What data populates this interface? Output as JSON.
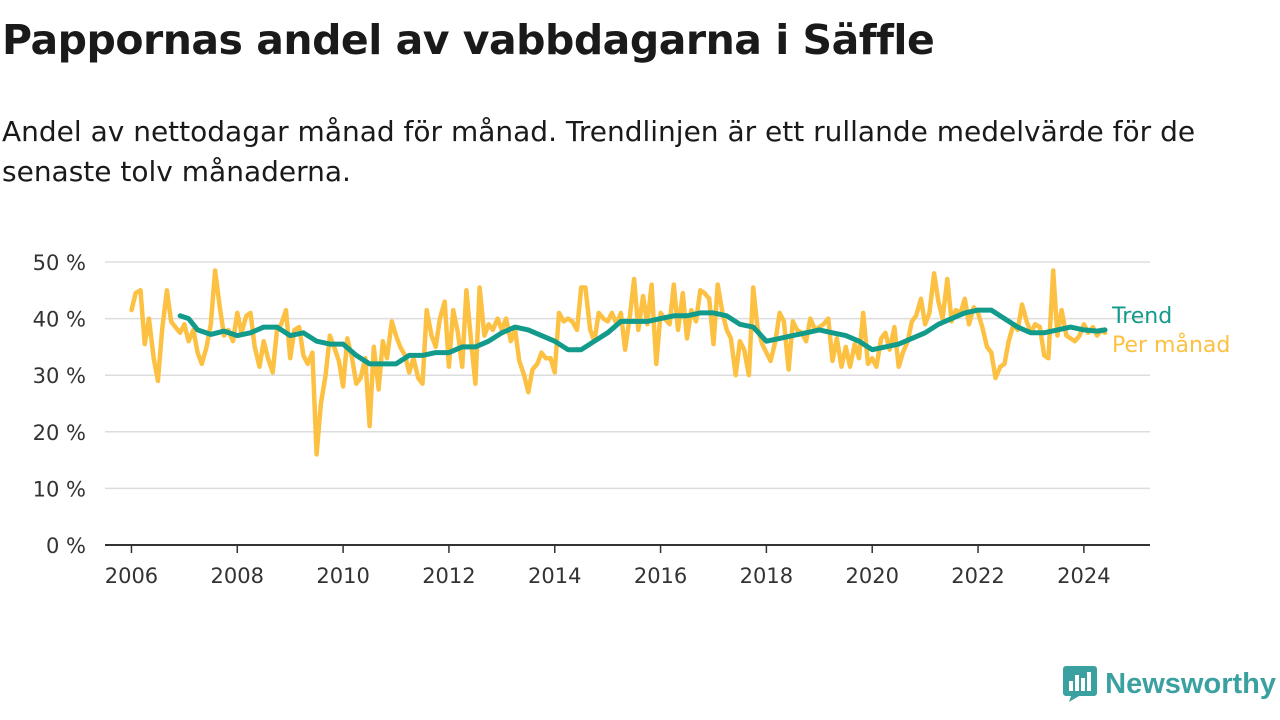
{
  "title": "Pappornas andel av vabbdagarna i Säffle",
  "subtitle": "Andel av nettodagar månad för månad. Trendlinjen är ett rullande medelvärde för de senaste tolv månaderna.",
  "brand": {
    "name": "Newsworthy",
    "icon": "newsworthy-logo-icon",
    "color": "#3aa0a0"
  },
  "chart_data": {
    "type": "line",
    "title": "",
    "xlabel": "",
    "ylabel": "",
    "xlim": [
      2005.5,
      2025.25
    ],
    "ylim": [
      0,
      50
    ],
    "x_ticks": [
      2006,
      2008,
      2010,
      2012,
      2014,
      2016,
      2018,
      2020,
      2022,
      2024
    ],
    "x_tick_labels": [
      "2006",
      "2008",
      "2010",
      "2012",
      "2014",
      "2016",
      "2018",
      "2020",
      "2022",
      "2024"
    ],
    "y_ticks": [
      0,
      10,
      20,
      30,
      40,
      50
    ],
    "y_tick_labels": [
      "0 %",
      "10 %",
      "20 %",
      "30 %",
      "40 %",
      "50 %"
    ],
    "grid": true,
    "legend_position": "right, at line ends",
    "series": [
      {
        "name": "Trend",
        "color": "#129a8a",
        "points": [
          [
            2006.92,
            40.5
          ],
          [
            2007.08,
            40
          ],
          [
            2007.25,
            38
          ],
          [
            2007.5,
            37.2
          ],
          [
            2007.75,
            37.8
          ],
          [
            2008.0,
            37
          ],
          [
            2008.25,
            37.5
          ],
          [
            2008.5,
            38.5
          ],
          [
            2008.75,
            38.5
          ],
          [
            2009.0,
            37
          ],
          [
            2009.25,
            37.5
          ],
          [
            2009.5,
            36
          ],
          [
            2009.75,
            35.5
          ],
          [
            2010.0,
            35.5
          ],
          [
            2010.25,
            33.5
          ],
          [
            2010.5,
            32
          ],
          [
            2010.75,
            32
          ],
          [
            2011.0,
            32
          ],
          [
            2011.25,
            33.5
          ],
          [
            2011.5,
            33.5
          ],
          [
            2011.75,
            34
          ],
          [
            2012.0,
            34
          ],
          [
            2012.25,
            35
          ],
          [
            2012.5,
            35
          ],
          [
            2012.75,
            36
          ],
          [
            2013.0,
            37.5
          ],
          [
            2013.25,
            38.5
          ],
          [
            2013.5,
            38
          ],
          [
            2013.75,
            37
          ],
          [
            2014.0,
            36
          ],
          [
            2014.25,
            34.5
          ],
          [
            2014.5,
            34.5
          ],
          [
            2014.75,
            36
          ],
          [
            2015.0,
            37.5
          ],
          [
            2015.25,
            39.5
          ],
          [
            2015.5,
            39.5
          ],
          [
            2015.75,
            39.5
          ],
          [
            2016.0,
            40
          ],
          [
            2016.25,
            40.5
          ],
          [
            2016.5,
            40.5
          ],
          [
            2016.75,
            41
          ],
          [
            2017.0,
            41
          ],
          [
            2017.25,
            40.5
          ],
          [
            2017.5,
            39
          ],
          [
            2017.75,
            38.5
          ],
          [
            2018.0,
            36
          ],
          [
            2018.25,
            36.5
          ],
          [
            2018.5,
            37
          ],
          [
            2018.75,
            37.5
          ],
          [
            2019.0,
            38
          ],
          [
            2019.25,
            37.5
          ],
          [
            2019.5,
            37
          ],
          [
            2019.75,
            36
          ],
          [
            2020.0,
            34.5
          ],
          [
            2020.25,
            35
          ],
          [
            2020.5,
            35.5
          ],
          [
            2020.75,
            36.5
          ],
          [
            2021.0,
            37.5
          ],
          [
            2021.25,
            39
          ],
          [
            2021.5,
            40
          ],
          [
            2021.75,
            41
          ],
          [
            2022.0,
            41.5
          ],
          [
            2022.25,
            41.5
          ],
          [
            2022.5,
            40
          ],
          [
            2022.75,
            38.5
          ],
          [
            2023.0,
            37.5
          ],
          [
            2023.25,
            37.5
          ],
          [
            2023.5,
            38
          ],
          [
            2023.75,
            38.5
          ],
          [
            2024.0,
            38
          ],
          [
            2024.25,
            37.8
          ],
          [
            2024.4,
            38
          ]
        ]
      },
      {
        "name": "Per månad",
        "color": "#fcc143",
        "points": [
          [
            2006.0,
            41.5
          ],
          [
            2006.08,
            44.5
          ],
          [
            2006.17,
            45
          ],
          [
            2006.25,
            35.5
          ],
          [
            2006.33,
            40
          ],
          [
            2006.42,
            33
          ],
          [
            2006.5,
            29
          ],
          [
            2006.58,
            38
          ],
          [
            2006.67,
            45
          ],
          [
            2006.75,
            39.5
          ],
          [
            2006.83,
            38.5
          ],
          [
            2006.92,
            37.5
          ],
          [
            2007.0,
            39
          ],
          [
            2007.08,
            36
          ],
          [
            2007.17,
            38
          ],
          [
            2007.25,
            34
          ],
          [
            2007.33,
            32
          ],
          [
            2007.42,
            35
          ],
          [
            2007.5,
            39
          ],
          [
            2007.58,
            48.5
          ],
          [
            2007.67,
            42
          ],
          [
            2007.75,
            37
          ],
          [
            2007.83,
            38
          ],
          [
            2007.92,
            36
          ],
          [
            2008.0,
            41
          ],
          [
            2008.08,
            37.5
          ],
          [
            2008.17,
            40.5
          ],
          [
            2008.25,
            41
          ],
          [
            2008.33,
            35
          ],
          [
            2008.42,
            31.5
          ],
          [
            2008.5,
            36
          ],
          [
            2008.58,
            33
          ],
          [
            2008.67,
            30.5
          ],
          [
            2008.75,
            38
          ],
          [
            2008.83,
            39
          ],
          [
            2008.92,
            41.5
          ],
          [
            2009.0,
            33
          ],
          [
            2009.08,
            38
          ],
          [
            2009.17,
            38.5
          ],
          [
            2009.25,
            33.5
          ],
          [
            2009.33,
            32
          ],
          [
            2009.42,
            34
          ],
          [
            2009.5,
            16
          ],
          [
            2009.58,
            25
          ],
          [
            2009.67,
            30
          ],
          [
            2009.75,
            37
          ],
          [
            2009.83,
            35
          ],
          [
            2009.92,
            32.5
          ],
          [
            2010.0,
            28
          ],
          [
            2010.08,
            36.5
          ],
          [
            2010.17,
            33
          ],
          [
            2010.25,
            28.5
          ],
          [
            2010.33,
            29.5
          ],
          [
            2010.42,
            33
          ],
          [
            2010.5,
            21
          ],
          [
            2010.58,
            35
          ],
          [
            2010.67,
            27.5
          ],
          [
            2010.75,
            36
          ],
          [
            2010.83,
            33
          ],
          [
            2010.92,
            39.5
          ],
          [
            2011.0,
            37
          ],
          [
            2011.08,
            35
          ],
          [
            2011.17,
            33.5
          ],
          [
            2011.25,
            30.5
          ],
          [
            2011.33,
            33
          ],
          [
            2011.42,
            29.5
          ],
          [
            2011.5,
            28.5
          ],
          [
            2011.58,
            41.5
          ],
          [
            2011.67,
            37
          ],
          [
            2011.75,
            35
          ],
          [
            2011.83,
            40
          ],
          [
            2011.92,
            43
          ],
          [
            2012.0,
            31.5
          ],
          [
            2012.08,
            41.5
          ],
          [
            2012.17,
            37.5
          ],
          [
            2012.25,
            31.5
          ],
          [
            2012.33,
            45
          ],
          [
            2012.42,
            36
          ],
          [
            2012.5,
            28.5
          ],
          [
            2012.58,
            45.5
          ],
          [
            2012.67,
            37
          ],
          [
            2012.75,
            39
          ],
          [
            2012.83,
            38
          ],
          [
            2012.92,
            40
          ],
          [
            2013.0,
            38
          ],
          [
            2013.08,
            40
          ],
          [
            2013.17,
            36
          ],
          [
            2013.25,
            38
          ],
          [
            2013.33,
            32.5
          ],
          [
            2013.42,
            30
          ],
          [
            2013.5,
            27
          ],
          [
            2013.58,
            31
          ],
          [
            2013.67,
            32
          ],
          [
            2013.75,
            34
          ],
          [
            2013.83,
            33
          ],
          [
            2013.92,
            33
          ],
          [
            2014.0,
            30.5
          ],
          [
            2014.08,
            41
          ],
          [
            2014.17,
            39.5
          ],
          [
            2014.25,
            40
          ],
          [
            2014.33,
            39.5
          ],
          [
            2014.42,
            38
          ],
          [
            2014.5,
            45.5
          ],
          [
            2014.58,
            45.5
          ],
          [
            2014.67,
            38
          ],
          [
            2014.75,
            36
          ],
          [
            2014.83,
            41
          ],
          [
            2014.92,
            40
          ],
          [
            2015.0,
            39.5
          ],
          [
            2015.08,
            41
          ],
          [
            2015.17,
            39
          ],
          [
            2015.25,
            41
          ],
          [
            2015.33,
            34.5
          ],
          [
            2015.42,
            40.5
          ],
          [
            2015.5,
            47
          ],
          [
            2015.58,
            38
          ],
          [
            2015.67,
            44
          ],
          [
            2015.75,
            39
          ],
          [
            2015.83,
            46
          ],
          [
            2015.92,
            32
          ],
          [
            2016.0,
            41
          ],
          [
            2016.08,
            40
          ],
          [
            2016.17,
            39
          ],
          [
            2016.25,
            46
          ],
          [
            2016.33,
            38
          ],
          [
            2016.42,
            44.5
          ],
          [
            2016.5,
            36.5
          ],
          [
            2016.58,
            41.5
          ],
          [
            2016.67,
            39.5
          ],
          [
            2016.75,
            45
          ],
          [
            2016.83,
            44.5
          ],
          [
            2016.92,
            43.5
          ],
          [
            2017.0,
            35.5
          ],
          [
            2017.08,
            46
          ],
          [
            2017.17,
            41
          ],
          [
            2017.25,
            38
          ],
          [
            2017.33,
            36.5
          ],
          [
            2017.42,
            30
          ],
          [
            2017.5,
            36
          ],
          [
            2017.58,
            34.5
          ],
          [
            2017.67,
            30
          ],
          [
            2017.75,
            45.5
          ],
          [
            2017.83,
            38.5
          ],
          [
            2017.92,
            35.5
          ],
          [
            2018.0,
            34
          ],
          [
            2018.08,
            32.5
          ],
          [
            2018.17,
            36
          ],
          [
            2018.25,
            41
          ],
          [
            2018.33,
            39.5
          ],
          [
            2018.42,
            31
          ],
          [
            2018.5,
            39.5
          ],
          [
            2018.58,
            38
          ],
          [
            2018.67,
            37.5
          ],
          [
            2018.75,
            36
          ],
          [
            2018.83,
            40
          ],
          [
            2018.92,
            38
          ],
          [
            2019.0,
            38.5
          ],
          [
            2019.08,
            39
          ],
          [
            2019.17,
            40
          ],
          [
            2019.25,
            32.5
          ],
          [
            2019.33,
            36.5
          ],
          [
            2019.42,
            31.5
          ],
          [
            2019.5,
            35
          ],
          [
            2019.58,
            31.5
          ],
          [
            2019.67,
            35.5
          ],
          [
            2019.75,
            33
          ],
          [
            2019.83,
            41
          ],
          [
            2019.92,
            32
          ],
          [
            2020.0,
            33
          ],
          [
            2020.08,
            31.5
          ],
          [
            2020.17,
            36.5
          ],
          [
            2020.25,
            37.5
          ],
          [
            2020.33,
            34.5
          ],
          [
            2020.42,
            38.5
          ],
          [
            2020.5,
            31.5
          ],
          [
            2020.58,
            34
          ],
          [
            2020.67,
            36
          ],
          [
            2020.75,
            39.5
          ],
          [
            2020.83,
            40.5
          ],
          [
            2020.92,
            43.5
          ],
          [
            2021.0,
            39
          ],
          [
            2021.08,
            41
          ],
          [
            2021.17,
            48
          ],
          [
            2021.25,
            43
          ],
          [
            2021.33,
            40
          ],
          [
            2021.42,
            47
          ],
          [
            2021.5,
            39.5
          ],
          [
            2021.58,
            41.5
          ],
          [
            2021.67,
            41
          ],
          [
            2021.75,
            43.5
          ],
          [
            2021.83,
            39
          ],
          [
            2021.92,
            42
          ],
          [
            2022.0,
            41
          ],
          [
            2022.08,
            38.5
          ],
          [
            2022.17,
            35
          ],
          [
            2022.25,
            34
          ],
          [
            2022.33,
            29.5
          ],
          [
            2022.42,
            31.5
          ],
          [
            2022.5,
            32
          ],
          [
            2022.58,
            36
          ],
          [
            2022.67,
            39
          ],
          [
            2022.75,
            38
          ],
          [
            2022.83,
            42.5
          ],
          [
            2022.92,
            39.5
          ],
          [
            2023.0,
            37.5
          ],
          [
            2023.08,
            39
          ],
          [
            2023.17,
            38.5
          ],
          [
            2023.25,
            33.5
          ],
          [
            2023.33,
            33
          ],
          [
            2023.42,
            48.5
          ],
          [
            2023.5,
            37
          ],
          [
            2023.58,
            41.5
          ],
          [
            2023.67,
            37
          ],
          [
            2023.75,
            36.5
          ],
          [
            2023.83,
            36
          ],
          [
            2023.92,
            37
          ],
          [
            2024.0,
            39
          ],
          [
            2024.08,
            37.5
          ],
          [
            2024.17,
            38.5
          ],
          [
            2024.25,
            37
          ],
          [
            2024.33,
            38
          ],
          [
            2024.4,
            37.5
          ]
        ]
      }
    ]
  }
}
